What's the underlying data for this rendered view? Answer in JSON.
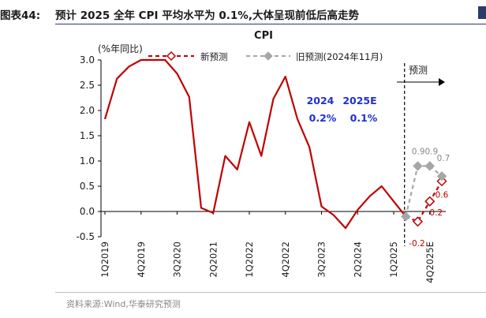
{
  "figure": {
    "label": "图表44:",
    "title": "预计 2025 全年 CPI 平均水平为 0.1%,大体呈现前低后高走势",
    "source": "资料来源:Wind,华泰研究预测"
  },
  "chart_data": {
    "type": "line",
    "title": "CPI",
    "unit_label": "(%年同比)",
    "ylim": [
      -0.5,
      3.0
    ],
    "yticks": [
      3.0,
      2.5,
      2.0,
      1.5,
      1.0,
      0.5,
      0.0,
      -0.5
    ],
    "ytick_labels": [
      "3.0",
      "2.5",
      "2.0",
      "1.5",
      "1.0",
      "0.5",
      "0.0",
      "-0.5"
    ],
    "xtick_labels": [
      "1Q2019",
      "4Q2019",
      "3Q2020",
      "2Q2021",
      "1Q2022",
      "4Q2022",
      "3Q2023",
      "2Q2024",
      "1Q2025",
      "4Q2025E"
    ],
    "xtick_index": [
      0,
      3,
      6,
      9,
      12,
      15,
      18,
      21,
      24,
      27
    ],
    "grid": false,
    "series": [
      {
        "name": "",
        "color": "#c00000",
        "style": "solid",
        "points": [
          [
            0,
            1.83
          ],
          [
            1,
            2.63
          ],
          [
            2,
            2.87
          ],
          [
            3,
            3.0
          ],
          [
            5,
            3.0
          ],
          [
            6,
            2.73
          ],
          [
            7,
            2.27
          ],
          [
            8,
            0.07
          ],
          [
            9,
            -0.03
          ],
          [
            10,
            1.1
          ],
          [
            11,
            0.83
          ],
          [
            12,
            1.77
          ],
          [
            13,
            1.1
          ],
          [
            14,
            2.23
          ],
          [
            15,
            2.67
          ],
          [
            16,
            1.83
          ],
          [
            17,
            1.27
          ],
          [
            18,
            0.1
          ],
          [
            19,
            -0.07
          ],
          [
            20,
            -0.33
          ],
          [
            21,
            0.03
          ],
          [
            22,
            0.3
          ],
          [
            23,
            0.5
          ],
          [
            24,
            0.2
          ],
          [
            25,
            -0.1
          ]
        ]
      },
      {
        "name": "新预测",
        "color": "#c00000",
        "style": "dashed",
        "marker": "diamond-hollow",
        "points": [
          [
            25,
            -0.1
          ],
          [
            26,
            -0.2
          ],
          [
            27,
            0.2
          ],
          [
            28,
            0.6
          ]
        ]
      },
      {
        "name": "旧预测(2024年11月)",
        "color": "#a6a6a6",
        "style": "dashed",
        "marker": "diamond-filled",
        "points": [
          [
            25,
            -0.1
          ],
          [
            26,
            0.9
          ],
          [
            27,
            0.9
          ],
          [
            28,
            0.7
          ]
        ]
      }
    ],
    "point_labels_new": [
      "-0.2",
      "0.2",
      "0.6"
    ],
    "point_labels_old": [
      "0.90.9",
      "0.7"
    ],
    "forecast_divider_index": 24.9,
    "forecast_label": "预测",
    "annotations": {
      "years": [
        "2024",
        "2025E"
      ],
      "values": [
        "0.2%",
        "0.1%"
      ]
    },
    "legend_position": "top-center"
  }
}
